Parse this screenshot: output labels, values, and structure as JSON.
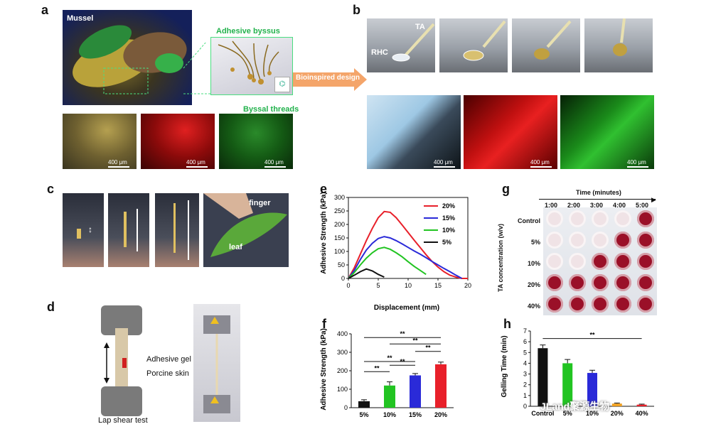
{
  "panels": {
    "a": "a",
    "b": "b",
    "c": "c",
    "d": "d",
    "e": "e",
    "f": "f",
    "g": "g",
    "h": "h"
  },
  "panel_a": {
    "mussel": "Mussel",
    "adhesive_byssus": "Adhesive byssus",
    "byssal_threads": "Byssal threads",
    "scale": "400 μm"
  },
  "arrow_text": "Bioinspired design",
  "panel_b": {
    "ta": "TA",
    "rhc": "RHC",
    "scale": "400 μm"
  },
  "panel_c": {
    "finger": "finger",
    "leaf": "leaf"
  },
  "panel_d": {
    "adhesive_gel": "Adhesive gel",
    "porcine_skin": "Porcine skin",
    "lap_shear": "Lap shear test"
  },
  "panel_g": {
    "title": "Time (minutes)",
    "times": [
      "1:00",
      "2:00",
      "3:00",
      "4:00",
      "5:00"
    ],
    "rows": [
      "Control",
      "5%",
      "10%",
      "20%",
      "40%"
    ],
    "ylabel": "TA concentration (w/v)",
    "gelled": [
      [
        0,
        0,
        0,
        0,
        1
      ],
      [
        0,
        0,
        0,
        1,
        1
      ],
      [
        0,
        0,
        1,
        1,
        1
      ],
      [
        1,
        1,
        1,
        1,
        1
      ],
      [
        1,
        1,
        1,
        1,
        1
      ]
    ],
    "colors": {
      "gel": "#9a1028",
      "liquid": "#f0e3e6"
    }
  },
  "watermark": "JLand聚源生物",
  "chart_data": [
    {
      "panel": "e",
      "type": "line",
      "xlabel": "Displacement (mm)",
      "ylabel": "Adhesive Strength (kPa)",
      "xlim": [
        0,
        20
      ],
      "ylim": [
        0,
        300
      ],
      "xticks": [
        0,
        5,
        10,
        15,
        20
      ],
      "yticks": [
        0,
        50,
        100,
        150,
        200,
        250,
        300
      ],
      "legend_position": "top-right",
      "series": [
        {
          "name": "20%",
          "color": "#e8202a",
          "x": [
            0,
            1,
            2,
            3,
            4,
            5,
            6,
            7,
            8,
            9,
            10,
            11,
            12,
            13,
            14,
            15,
            16,
            17,
            18,
            19,
            20
          ],
          "y": [
            0,
            40,
            90,
            140,
            185,
            225,
            248,
            245,
            225,
            198,
            170,
            142,
            115,
            88,
            63,
            42,
            25,
            12,
            5,
            0,
            0
          ]
        },
        {
          "name": "15%",
          "color": "#2a2ad8",
          "x": [
            0,
            1,
            2,
            3,
            4,
            5,
            6,
            7,
            8,
            9,
            10,
            11,
            12,
            13,
            14,
            15,
            16,
            17,
            18,
            19
          ],
          "y": [
            0,
            30,
            70,
            105,
            130,
            148,
            155,
            150,
            140,
            128,
            115,
            102,
            90,
            77,
            63,
            50,
            37,
            25,
            12,
            0
          ]
        },
        {
          "name": "10%",
          "color": "#22c422",
          "x": [
            0,
            1,
            2,
            3,
            4,
            5,
            6,
            7,
            8,
            9,
            10,
            11,
            12,
            13
          ],
          "y": [
            0,
            22,
            50,
            75,
            95,
            110,
            115,
            108,
            95,
            80,
            62,
            45,
            30,
            15
          ]
        },
        {
          "name": "5%",
          "color": "#111111",
          "x": [
            0,
            1,
            2,
            3,
            4,
            5,
            6
          ],
          "y": [
            0,
            12,
            25,
            35,
            28,
            15,
            5
          ]
        }
      ]
    },
    {
      "panel": "f",
      "type": "bar",
      "categories": [
        "5%",
        "10%",
        "15%",
        "20%"
      ],
      "values": [
        35,
        120,
        175,
        235
      ],
      "errors": [
        8,
        20,
        10,
        12
      ],
      "colors": [
        "#111111",
        "#22c422",
        "#2a2ad8",
        "#e8202a"
      ],
      "ylabel": "Adhesive Strength (kPa)",
      "ylim": [
        0,
        400
      ],
      "yticks": [
        0,
        100,
        200,
        300,
        400
      ],
      "significance": [
        "**",
        "**",
        "**",
        "**",
        "**",
        "**"
      ]
    },
    {
      "panel": "h",
      "type": "bar",
      "categories": [
        "Control",
        "5%",
        "10%",
        "20%",
        "40%"
      ],
      "values": [
        5.4,
        4.0,
        3.1,
        0.25,
        0.15
      ],
      "errors": [
        0.3,
        0.35,
        0.25,
        0.05,
        0.05
      ],
      "colors": [
        "#111111",
        "#22c422",
        "#2a2ad8",
        "#f0a020",
        "#e8202a"
      ],
      "ylabel": "Gelling Time (min)",
      "ylim": [
        0,
        7
      ],
      "yticks": [
        0,
        1,
        2,
        3,
        4,
        5,
        6,
        7
      ],
      "significance": [
        "**"
      ]
    }
  ]
}
